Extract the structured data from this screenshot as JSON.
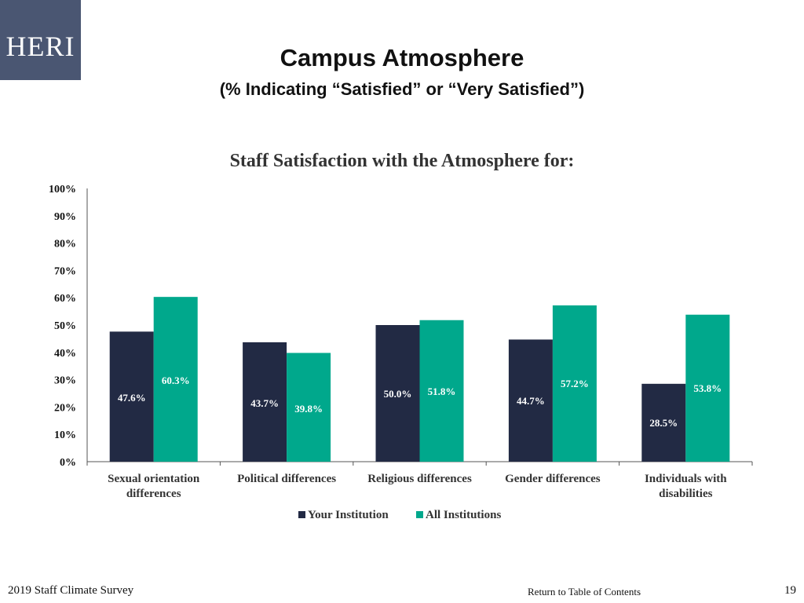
{
  "logo": {
    "text": "HERI"
  },
  "slide": {
    "title": "Campus Atmosphere",
    "subtitle": "(% Indicating “Satisfied” or “Very Satisfied”)"
  },
  "footer": {
    "survey": "2019 Staff  Climate Survey",
    "link": "Return to Table of Contents",
    "page": "19"
  },
  "colors": {
    "logo_bg": "#4a5672",
    "your_institution": "#222a44",
    "all_institutions": "#00a88c"
  },
  "chart_data": {
    "type": "bar",
    "title": "Staff  Satisfaction with the Atmosphere for:",
    "categories": [
      [
        "Sexual orientation",
        "differences"
      ],
      [
        "Political differences"
      ],
      [
        "Religious differences"
      ],
      [
        "Gender differences"
      ],
      [
        "Individuals with",
        "disabilities"
      ]
    ],
    "series": [
      {
        "name": "Your Institution",
        "color": "#222a44",
        "values": [
          47.6,
          43.7,
          50.0,
          44.7,
          28.5
        ],
        "labels": [
          "47.6%",
          "43.7%",
          "50.0%",
          "44.7%",
          "28.5%"
        ]
      },
      {
        "name": "All Institutions",
        "color": "#00a88c",
        "values": [
          60.3,
          39.8,
          51.8,
          57.2,
          53.8
        ],
        "labels": [
          "60.3%",
          "39.8%",
          "51.8%",
          "57.2%",
          "53.8%"
        ]
      }
    ],
    "yticks": [
      "0%",
      "10%",
      "20%",
      "30%",
      "40%",
      "50%",
      "60%",
      "70%",
      "80%",
      "90%",
      "100%"
    ],
    "ylim": [
      0,
      100
    ],
    "legend_position": "bottom",
    "grid": false
  }
}
